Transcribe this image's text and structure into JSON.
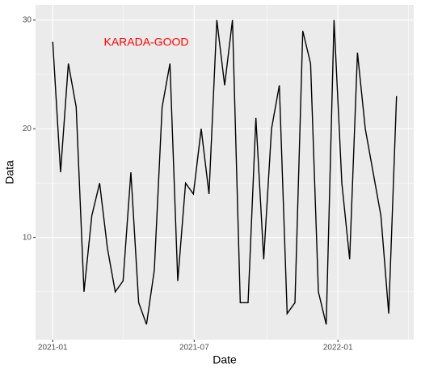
{
  "chart_data": {
    "type": "line",
    "annotation": "KARADA-GOOD",
    "annotation_color": "#ff0000",
    "x_label": "Date",
    "y_label": "Data",
    "x": [
      "2021-01-01",
      "2021-01-11",
      "2021-01-21",
      "2021-01-31",
      "2021-02-10",
      "2021-02-20",
      "2021-03-02",
      "2021-03-12",
      "2021-03-22",
      "2021-04-01",
      "2021-04-11",
      "2021-04-21",
      "2021-05-01",
      "2021-05-11",
      "2021-05-21",
      "2021-05-31",
      "2021-06-10",
      "2021-06-20",
      "2021-06-30",
      "2021-07-10",
      "2021-07-20",
      "2021-07-30",
      "2021-08-09",
      "2021-08-19",
      "2021-08-29",
      "2021-09-08",
      "2021-09-18",
      "2021-09-28",
      "2021-10-08",
      "2021-10-18",
      "2021-10-28",
      "2021-11-07",
      "2021-11-17",
      "2021-11-27",
      "2021-12-07",
      "2021-12-17",
      "2021-12-27",
      "2022-01-06",
      "2022-01-16",
      "2022-01-26",
      "2022-02-05",
      "2022-02-15",
      "2022-02-25",
      "2022-03-07",
      "2022-03-17"
    ],
    "series": [
      {
        "color": "#000000",
        "values": [
          28,
          16,
          26,
          22,
          5,
          12,
          15,
          9,
          5,
          6,
          16,
          4,
          2,
          7,
          22,
          26,
          6,
          15,
          14,
          20,
          14,
          30,
          24,
          30,
          4,
          4,
          21,
          8,
          20,
          24,
          3,
          4,
          29,
          26,
          5,
          2,
          30,
          15,
          8,
          27,
          20,
          16,
          12,
          3,
          23
        ]
      }
    ],
    "xlim": [
      "2020-12-10",
      "2022-04-08"
    ],
    "xticks": [
      {
        "value": "2021-01-01",
        "label": "2021-01"
      },
      {
        "value": "2021-07-01",
        "label": "2021-07"
      },
      {
        "value": "2022-01-01",
        "label": "2022-01"
      }
    ],
    "ylim": [
      0.6,
      31.4
    ],
    "yticks": [
      10,
      20,
      30
    ],
    "grid": true
  }
}
